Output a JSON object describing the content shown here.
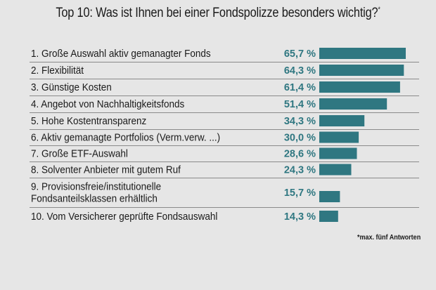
{
  "chart_data": {
    "type": "bar",
    "orientation": "horizontal",
    "title": "Top 10: Was ist Ihnen bei einer Fondspolizze besonders wichtig?",
    "title_marker": "*",
    "categories": [
      [
        "1. Große Auswahl aktiv gemanagter Fonds"
      ],
      [
        "2. Flexibilität"
      ],
      [
        "3. Günstige Kosten"
      ],
      [
        "4. Angebot von Nachhaltigkeitsfonds"
      ],
      [
        "5. Hohe Kostentransparenz"
      ],
      [
        "6. Aktiv gemanagte Portfolios (Verm.verw. ...)"
      ],
      [
        "7. Große ETF-Auswahl"
      ],
      [
        "8. Solventer Anbieter mit gutem Ruf"
      ],
      [
        "9. Provisionsfreie/institutionelle",
        "Fondsanteilsklassen erhältlich"
      ],
      [
        "10. Vom Versicherer geprüfte Fondsauswahl"
      ]
    ],
    "values": [
      65.7,
      64.3,
      61.4,
      51.4,
      34.3,
      30.0,
      28.6,
      24.3,
      15.7,
      14.3
    ],
    "value_labels": [
      "65,7 %",
      "64,3 %",
      "61,4 %",
      "51,4 %",
      "34,3 %",
      "30,0 %",
      "28,6 %",
      "24,3 %",
      "15,7 %",
      "14,3 %"
    ],
    "unit": "%",
    "xlim": [
      0,
      70
    ],
    "bar_color": "#2f7781",
    "value_color": "#2f7781",
    "grid": false,
    "footnote": "*max. fünf Antworten"
  }
}
